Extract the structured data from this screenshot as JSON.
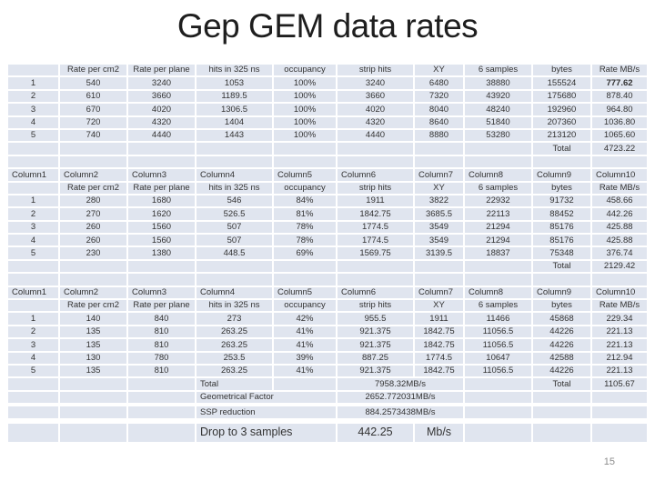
{
  "slide": {
    "title": "Gep GEM data rates",
    "page_number": "15"
  },
  "colors": {
    "cell_fill": "#e0e5ef",
    "cell_text": "#333333",
    "title_text": "#1e1e1e",
    "page_number_text": "#8c8c8c",
    "background": "#ffffff"
  },
  "tables": [
    {
      "headers": [
        "",
        "Rate per cm2",
        "Rate per plane",
        "hits in 325 ns",
        "occupancy",
        "strip hits",
        "XY",
        "6 samples",
        "bytes",
        "Rate MB/s"
      ],
      "rows": [
        [
          "1",
          "540",
          "3240",
          "1053",
          "100%",
          "3240",
          "6480",
          "38880",
          "155524",
          {
            "text": "777.62",
            "bold": true
          }
        ],
        [
          "2",
          "610",
          "3660",
          "1189.5",
          "100%",
          "3660",
          "7320",
          "43920",
          "175680",
          "878.40"
        ],
        [
          "3",
          "670",
          "4020",
          "1306.5",
          "100%",
          "4020",
          "8040",
          "48240",
          "192960",
          "964.80"
        ],
        [
          "4",
          "720",
          "4320",
          "1404",
          "100%",
          "4320",
          "8640",
          "51840",
          "207360",
          "1036.80"
        ],
        [
          "5",
          "740",
          "4440",
          "1443",
          "100%",
          "4440",
          "8880",
          "53280",
          "213120",
          "1065.60"
        ]
      ],
      "total": {
        "label": "Total",
        "value": "4723.22"
      }
    },
    {
      "column_names": [
        "Column1",
        "Column2",
        "Column3",
        "Column4",
        "Column5",
        "Column6",
        "Column7",
        "Column8",
        "Column9",
        "Column10"
      ],
      "headers": [
        "",
        "Rate per cm2",
        "Rate per plane",
        "hits in 325 ns",
        "occupancy",
        "strip hits",
        "XY",
        "6 samples",
        "bytes",
        "Rate MB/s"
      ],
      "rows": [
        [
          "1",
          "280",
          "1680",
          "546",
          "84%",
          "1911",
          "3822",
          "22932",
          "91732",
          "458.66"
        ],
        [
          "2",
          "270",
          "1620",
          "526.5",
          "81%",
          "1842.75",
          "3685.5",
          "22113",
          "88452",
          "442.26"
        ],
        [
          "3",
          "260",
          "1560",
          "507",
          "78%",
          "1774.5",
          "3549",
          "21294",
          "85176",
          "425.88"
        ],
        [
          "4",
          "260",
          "1560",
          "507",
          "78%",
          "1774.5",
          "3549",
          "21294",
          "85176",
          "425.88"
        ],
        [
          "5",
          "230",
          "1380",
          "448.5",
          "69%",
          "1569.75",
          "3139.5",
          "18837",
          "75348",
          "376.74"
        ]
      ],
      "total": {
        "label": "Total",
        "value": "2129.42"
      }
    },
    {
      "column_names": [
        "Column1",
        "Column2",
        "Column3",
        "Column4",
        "Column5",
        "Column6",
        "Column7",
        "Column8",
        "Column9",
        "Column10"
      ],
      "headers": [
        "",
        "Rate per cm2",
        "Rate per plane",
        "hits in 325 ns",
        "occupancy",
        "strip hits",
        "XY",
        "6 samples",
        "bytes",
        "Rate MB/s"
      ],
      "rows": [
        [
          "1",
          "140",
          "840",
          "273",
          "42%",
          "955.5",
          "1911",
          "11466",
          "45868",
          "229.34"
        ],
        [
          "2",
          "135",
          "810",
          "263.25",
          "41%",
          "921.375",
          "1842.75",
          "11056.5",
          "44226",
          "221.13"
        ],
        [
          "3",
          "135",
          "810",
          "263.25",
          "41%",
          "921.375",
          "1842.75",
          "11056.5",
          "44226",
          "221.13"
        ],
        [
          "4",
          "130",
          "780",
          "253.5",
          "39%",
          "887.25",
          "1774.5",
          "10647",
          "42588",
          "212.94"
        ],
        [
          "5",
          "135",
          "810",
          "263.25",
          "41%",
          "921.375",
          "1842.75",
          "11056.5",
          "44226",
          "221.13"
        ]
      ],
      "grand_total": {
        "label": "Total",
        "merged_value": "7958.32MB/s",
        "bytes_label": "Total",
        "rate_value": "1105.67"
      },
      "footer_rows": [
        {
          "label": "Geometrical Factor",
          "value": "2652.772031MB/s",
          "gap_above": 0
        },
        {
          "label": "SSP reduction",
          "value": "884.2573438MB/s",
          "gap_above": 4
        },
        {
          "label": "Drop to 3 samples",
          "value": "442.25",
          "unit": "Mb/s",
          "large": true,
          "gap_above": 6
        }
      ]
    }
  ]
}
